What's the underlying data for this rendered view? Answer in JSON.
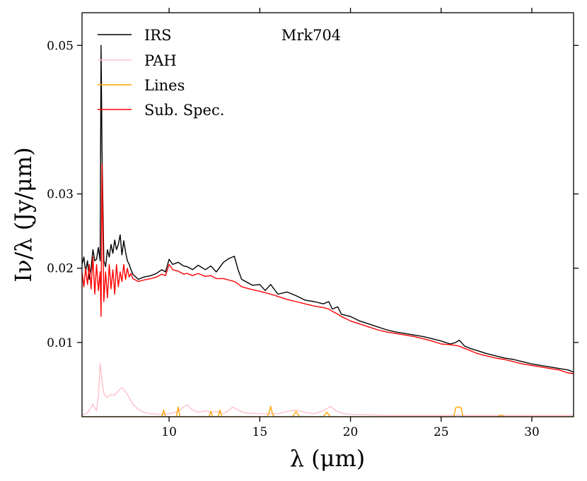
{
  "chart_data": {
    "type": "line",
    "title": "Mrk704",
    "xlabel": "λ (μm)",
    "ylabel": "Iν/λ (Jy/μm)",
    "xlim": [
      5.2,
      32.3
    ],
    "ylim": [
      0.0,
      0.0544
    ],
    "xticks": [
      10,
      15,
      20,
      25,
      30
    ],
    "xtick_labels": [
      "10",
      "15",
      "20",
      "25",
      "30"
    ],
    "yticks": [
      0.01,
      0.02,
      0.03,
      0.05
    ],
    "ytick_labels": [
      "0.01",
      "0.02",
      "0.03",
      "0.05"
    ],
    "legend_position": "top-left",
    "colors": {
      "IRS": "#000000",
      "PAH": "#ffc0cb",
      "Lines": "#ffa500",
      "Sub. Spec.": "#ff0000"
    },
    "series": [
      {
        "name": "IRS",
        "x": [
          5.2,
          5.3,
          5.4,
          5.5,
          5.6,
          5.7,
          5.8,
          5.9,
          6.0,
          6.1,
          6.2,
          6.25,
          6.3,
          6.4,
          6.5,
          6.6,
          6.7,
          6.8,
          6.9,
          7.0,
          7.1,
          7.2,
          7.3,
          7.4,
          7.5,
          7.6,
          7.7,
          7.8,
          7.9,
          8.0,
          8.3,
          8.6,
          9.0,
          9.3,
          9.6,
          9.8,
          10.0,
          10.2,
          10.5,
          10.8,
          11.0,
          11.3,
          11.6,
          12.0,
          12.3,
          12.6,
          13.0,
          13.3,
          13.6,
          13.8,
          14.0,
          14.3,
          14.6,
          15.0,
          15.3,
          15.6,
          16.0,
          16.5,
          17.0,
          17.5,
          18.0,
          18.5,
          18.8,
          19.0,
          19.3,
          19.5,
          20.0,
          20.5,
          21.0,
          21.5,
          22.0,
          22.5,
          23.0,
          23.5,
          24.0,
          24.5,
          25.0,
          25.5,
          25.8,
          26.0,
          26.3,
          26.6,
          27.0,
          27.5,
          28.0,
          28.5,
          29.0,
          29.5,
          30.0,
          30.5,
          31.0,
          31.5,
          32.0,
          32.3
        ],
        "y": [
          0.0205,
          0.0215,
          0.0195,
          0.021,
          0.0185,
          0.02,
          0.0225,
          0.021,
          0.0212,
          0.0228,
          0.021,
          0.05,
          0.036,
          0.021,
          0.0202,
          0.0225,
          0.0215,
          0.0232,
          0.022,
          0.0238,
          0.0225,
          0.0232,
          0.0245,
          0.0218,
          0.0237,
          0.0222,
          0.021,
          0.0205,
          0.0198,
          0.0192,
          0.0185,
          0.0188,
          0.019,
          0.0193,
          0.0198,
          0.0195,
          0.0212,
          0.0205,
          0.0208,
          0.0203,
          0.0202,
          0.0198,
          0.0204,
          0.0198,
          0.0203,
          0.0195,
          0.0208,
          0.0213,
          0.0216,
          0.0198,
          0.0185,
          0.0181,
          0.0177,
          0.0178,
          0.017,
          0.0178,
          0.0165,
          0.0168,
          0.0163,
          0.0157,
          0.0155,
          0.0152,
          0.0155,
          0.0145,
          0.0148,
          0.0138,
          0.0135,
          0.0129,
          0.0125,
          0.0121,
          0.0117,
          0.0114,
          0.0112,
          0.011,
          0.0108,
          0.0105,
          0.0102,
          0.0098,
          0.01,
          0.0103,
          0.0095,
          0.0092,
          0.0089,
          0.0085,
          0.0082,
          0.0079,
          0.0077,
          0.0074,
          0.0071,
          0.0069,
          0.0067,
          0.0065,
          0.0063,
          0.006
        ]
      },
      {
        "name": "PAH",
        "x": [
          5.2,
          5.5,
          5.8,
          5.9,
          6.0,
          6.1,
          6.2,
          6.3,
          6.4,
          6.5,
          6.6,
          6.8,
          7.0,
          7.2,
          7.4,
          7.6,
          7.8,
          8.0,
          8.3,
          8.6,
          9.0,
          9.5,
          10.0,
          10.5,
          10.8,
          11.0,
          11.3,
          11.6,
          12.0,
          12.3,
          12.6,
          13.0,
          13.3,
          13.5,
          13.8,
          14.2,
          15.0,
          16.0,
          16.5,
          17.0,
          17.5,
          18.0,
          18.5,
          18.9,
          19.2,
          19.6,
          20.0,
          22.0,
          24.0,
          26.0,
          28.0,
          30.0,
          32.3
        ],
        "y": [
          0.0002,
          0.0005,
          0.0017,
          0.0012,
          0.0008,
          0.0028,
          0.0072,
          0.0048,
          0.0032,
          0.0028,
          0.0026,
          0.003,
          0.0029,
          0.0035,
          0.0039,
          0.0034,
          0.0026,
          0.0017,
          0.001,
          0.0006,
          0.0004,
          0.0003,
          0.0004,
          0.0007,
          0.0013,
          0.0016,
          0.0009,
          0.0006,
          0.0008,
          0.0006,
          0.0007,
          0.0004,
          0.0009,
          0.0013,
          0.0009,
          0.0005,
          0.0004,
          0.0004,
          0.0007,
          0.0009,
          0.0006,
          0.0004,
          0.0008,
          0.0014,
          0.0008,
          0.0004,
          0.0003,
          0.0002,
          0.0002,
          0.0002,
          0.0002,
          0.0002,
          0.0002
        ]
      },
      {
        "name": "Lines",
        "x": [
          5.2,
          9.6,
          9.7,
          9.8,
          10.4,
          10.5,
          10.6,
          12.2,
          12.3,
          12.4,
          12.7,
          12.8,
          12.9,
          15.4,
          15.5,
          15.6,
          15.7,
          15.8,
          16.8,
          17.0,
          17.2,
          18.5,
          18.7,
          18.9,
          25.7,
          25.8,
          25.9,
          26.0,
          26.1,
          26.2,
          28.1,
          28.3,
          28.5,
          32.3
        ],
        "y": [
          0.0,
          0.0,
          0.0009,
          0.0,
          0.0,
          0.0013,
          0.0,
          0.0,
          0.0007,
          0.0,
          0.0,
          0.0009,
          0.0,
          0.0,
          0.0004,
          0.0014,
          0.0004,
          0.0,
          0.0,
          0.0007,
          0.0,
          0.0,
          0.0006,
          0.0,
          0.0,
          0.0012,
          0.0013,
          0.0013,
          0.0012,
          0.0,
          0.0,
          0.0002,
          0.0,
          0.0
        ]
      },
      {
        "name": "Sub. Spec.",
        "x": [
          5.2,
          5.3,
          5.4,
          5.5,
          5.6,
          5.7,
          5.8,
          5.9,
          6.0,
          6.1,
          6.2,
          6.25,
          6.3,
          6.35,
          6.4,
          6.5,
          6.6,
          6.7,
          6.8,
          6.9,
          7.0,
          7.1,
          7.2,
          7.3,
          7.4,
          7.5,
          7.6,
          7.7,
          7.8,
          7.9,
          8.0,
          8.3,
          8.6,
          9.0,
          9.3,
          9.6,
          9.8,
          10.0,
          10.2,
          10.5,
          10.8,
          11.0,
          11.3,
          11.6,
          12.0,
          12.3,
          12.6,
          13.0,
          13.3,
          13.6,
          13.8,
          14.0,
          14.3,
          14.6,
          15.0,
          15.3,
          15.6,
          16.0,
          16.5,
          17.0,
          17.5,
          18.0,
          18.5,
          18.8,
          19.0,
          19.3,
          19.5,
          20.0,
          20.5,
          21.0,
          21.5,
          22.0,
          22.5,
          23.0,
          23.5,
          24.0,
          24.5,
          25.0,
          25.5,
          25.8,
          26.0,
          26.3,
          26.6,
          27.0,
          27.5,
          28.0,
          28.5,
          29.0,
          29.5,
          30.0,
          30.5,
          31.0,
          31.5,
          32.0,
          32.3
        ],
        "y": [
          0.0195,
          0.0175,
          0.02,
          0.0178,
          0.0205,
          0.0172,
          0.0215,
          0.0165,
          0.0205,
          0.017,
          0.0195,
          0.0135,
          0.034,
          0.025,
          0.0155,
          0.0195,
          0.016,
          0.0205,
          0.0172,
          0.0198,
          0.0165,
          0.0205,
          0.0175,
          0.0195,
          0.0182,
          0.0205,
          0.0185,
          0.02,
          0.0188,
          0.0193,
          0.0186,
          0.0182,
          0.0184,
          0.0186,
          0.0188,
          0.0192,
          0.019,
          0.0205,
          0.0198,
          0.0196,
          0.0192,
          0.0193,
          0.019,
          0.0193,
          0.0189,
          0.019,
          0.0186,
          0.0186,
          0.0184,
          0.0182,
          0.0179,
          0.0175,
          0.0173,
          0.0171,
          0.0169,
          0.0167,
          0.0165,
          0.0162,
          0.0158,
          0.0155,
          0.0152,
          0.0149,
          0.0147,
          0.0145,
          0.0142,
          0.0138,
          0.0135,
          0.0129,
          0.0125,
          0.0121,
          0.0117,
          0.0114,
          0.0112,
          0.011,
          0.0108,
          0.0105,
          0.0102,
          0.0098,
          0.0097,
          0.0096,
          0.0095,
          0.0092,
          0.0089,
          0.0085,
          0.0082,
          0.0079,
          0.0077,
          0.0074,
          0.0071,
          0.0069,
          0.0067,
          0.0065,
          0.0063,
          0.0059,
          0.0058
        ]
      }
    ]
  }
}
